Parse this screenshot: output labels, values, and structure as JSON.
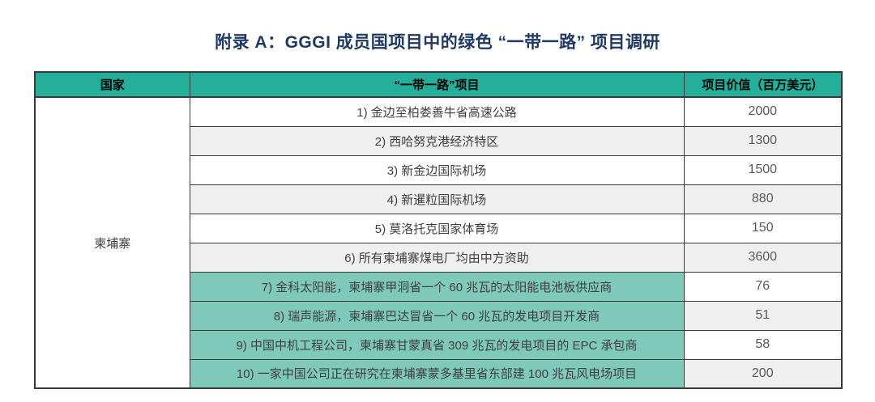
{
  "title": "附录 A：GGGI 成员国项目中的绿色 “一带一路” 项目调研",
  "colors": {
    "header_green": "#23AF99",
    "highlight_teal": "#7EC9BA",
    "alt_row_gray": "#EFEFEF",
    "title_blue": "#1F3864",
    "border_dark": "#3A3A3A"
  },
  "table": {
    "headers": [
      "国家",
      "“一带一路”项目",
      "项目价值（百万美元）"
    ],
    "country": "柬埔寨",
    "rows": [
      {
        "project": "1) 金边至柏娄善牛省高速公路",
        "value": "2000",
        "highlighted": false
      },
      {
        "project": "2) 西哈努克港经济特区",
        "value": "1300",
        "highlighted": false
      },
      {
        "project": "3) 新金边国际机场",
        "value": "1500",
        "highlighted": false
      },
      {
        "project": "4) 新暹粒国际机场",
        "value": "880",
        "highlighted": false
      },
      {
        "project": "5) 莫洛托克国家体育场",
        "value": "150",
        "highlighted": false
      },
      {
        "project": "6) 所有柬埔寨煤电厂均由中方资助",
        "value": "3600",
        "highlighted": false
      },
      {
        "project": "7) 金科太阳能，柬埔寨甲洞省一个 60 兆瓦的太阳能电池板供应商",
        "value": "76",
        "highlighted": true
      },
      {
        "project": "8) 瑞声能源，柬埔寨巴达冒省一个 60 兆瓦的发电项目开发商",
        "value": "51",
        "highlighted": true
      },
      {
        "project": "9) 中国中机工程公司，柬埔寨甘蒙真省 309 兆瓦的发电项目的 EPC 承包商",
        "value": "58",
        "highlighted": true
      },
      {
        "project": "10) 一家中国公司正在研究在柬埔寨蒙多基里省东部建 100 兆瓦风电场项目",
        "value": "200",
        "highlighted": true
      }
    ]
  }
}
